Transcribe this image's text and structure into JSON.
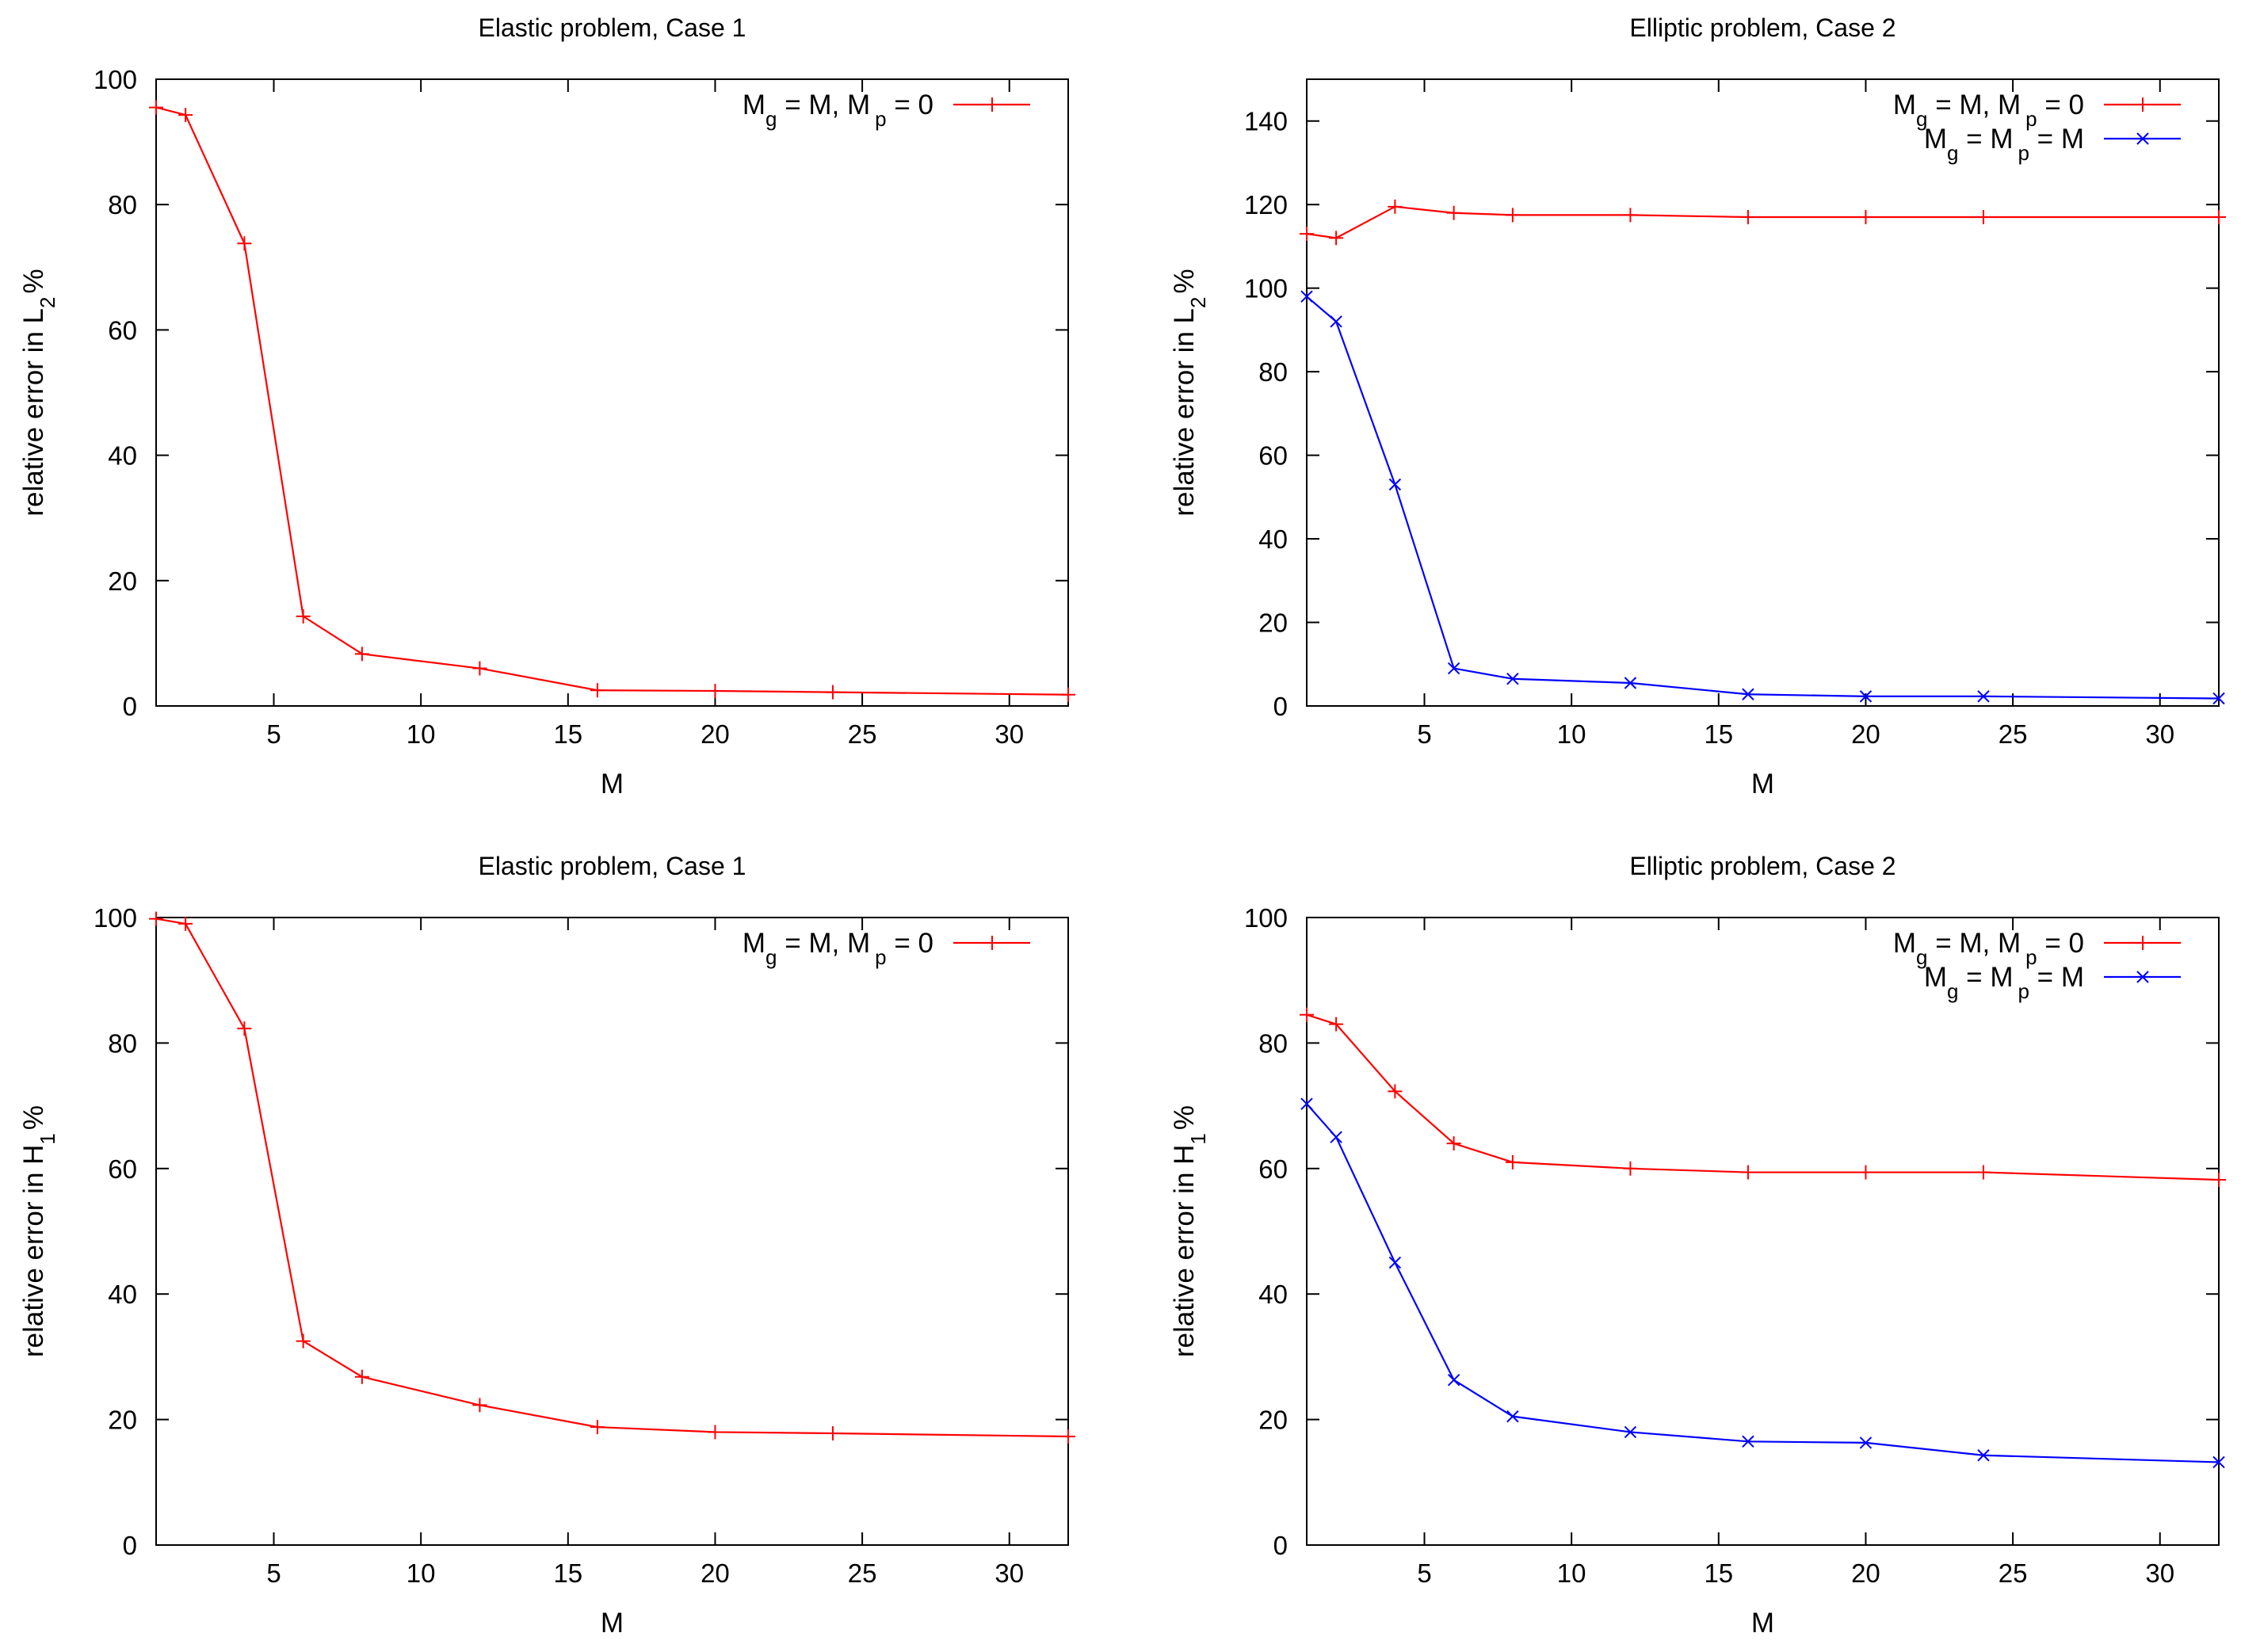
{
  "colors": {
    "red": "#ff0000",
    "blue": "#0000ff",
    "frame": "#000000"
  },
  "chart_data": [
    {
      "type": "line",
      "title": "Elastic problem, Case 1",
      "xlabel": "M",
      "ylabel": {
        "text": "relative error in L",
        "sub": "2",
        "suffix": "%"
      },
      "xlim": [
        1,
        32
      ],
      "ylim": [
        0,
        100
      ],
      "xticks": [
        5,
        10,
        15,
        20,
        25,
        30
      ],
      "yticks": [
        0,
        20,
        40,
        60,
        80,
        100
      ],
      "series": [
        {
          "name": "M_g = M, M_p = 0",
          "label": {
            "a": "M",
            "a_sub": "g",
            "b": " = M, M",
            "b_sub": "p",
            "c": " = 0"
          },
          "color": "red",
          "marker": "plus",
          "x": [
            1,
            2,
            4,
            6,
            8,
            12,
            16,
            20,
            24,
            32
          ],
          "y": [
            95.5,
            94.3,
            73.8,
            14.3,
            8.3,
            6.0,
            2.5,
            2.4,
            2.2,
            1.8
          ]
        }
      ]
    },
    {
      "type": "line",
      "title": "Elliptic problem, Case 2",
      "xlabel": "M",
      "ylabel": {
        "text": "relative error in L",
        "sub": "2",
        "suffix": "%"
      },
      "xlim": [
        1,
        32
      ],
      "ylim": [
        0,
        150
      ],
      "xticks": [
        5,
        10,
        15,
        20,
        25,
        30
      ],
      "yticks": [
        0,
        20,
        40,
        60,
        80,
        100,
        120,
        140
      ],
      "series": [
        {
          "name": "M_g = M, M_p = 0",
          "label": {
            "a": "M",
            "a_sub": "g",
            "b": " = M, M",
            "b_sub": "p",
            "c": " = 0"
          },
          "color": "red",
          "marker": "plus",
          "x": [
            1,
            2,
            4,
            6,
            8,
            12,
            16,
            20,
            24,
            32
          ],
          "y": [
            113,
            112,
            119.5,
            118,
            117.5,
            117.5,
            117,
            117,
            117,
            117
          ]
        },
        {
          "name": "M_g = M_p = M",
          "label": {
            "a": "M",
            "a_sub": "g",
            "b": " = M",
            "b_sub": "p",
            "c": " = M"
          },
          "color": "blue",
          "marker": "cross",
          "x": [
            1,
            2,
            4,
            6,
            8,
            12,
            16,
            20,
            24,
            32
          ],
          "y": [
            98,
            92,
            53,
            9,
            6.5,
            5.5,
            2.8,
            2.3,
            2.3,
            1.8
          ]
        }
      ]
    },
    {
      "type": "line",
      "title": "Elastic problem, Case 1",
      "xlabel": "M",
      "ylabel": {
        "text": "relative error in H",
        "sub": "1",
        "suffix": "%"
      },
      "xlim": [
        1,
        32
      ],
      "ylim": [
        0,
        100
      ],
      "xticks": [
        5,
        10,
        15,
        20,
        25,
        30
      ],
      "yticks": [
        0,
        20,
        40,
        60,
        80,
        100
      ],
      "series": [
        {
          "name": "M_g = M, M_p = 0",
          "label": {
            "a": "M",
            "a_sub": "g",
            "b": " = M, M",
            "b_sub": "p",
            "c": " = 0"
          },
          "color": "red",
          "marker": "plus",
          "x": [
            1,
            2,
            4,
            6,
            8,
            12,
            16,
            20,
            24,
            32
          ],
          "y": [
            99.8,
            99,
            82.3,
            32.5,
            26.8,
            22.3,
            18.8,
            18,
            17.8,
            17.3
          ]
        }
      ]
    },
    {
      "type": "line",
      "title": "Elliptic problem, Case 2",
      "xlabel": "M",
      "ylabel": {
        "text": "relative error in H",
        "sub": "1",
        "suffix": "%"
      },
      "xlim": [
        1,
        32
      ],
      "ylim": [
        0,
        100
      ],
      "xticks": [
        5,
        10,
        15,
        20,
        25,
        30
      ],
      "yticks": [
        0,
        20,
        40,
        60,
        80,
        100
      ],
      "series": [
        {
          "name": "M_g = M, M_p = 0",
          "label": {
            "a": "M",
            "a_sub": "g",
            "b": " = M, M",
            "b_sub": "p",
            "c": " = 0"
          },
          "color": "red",
          "marker": "plus",
          "x": [
            1,
            2,
            4,
            6,
            8,
            12,
            16,
            20,
            24,
            32
          ],
          "y": [
            84.5,
            83,
            72.3,
            64,
            61,
            60,
            59.4,
            59.4,
            59.4,
            58.2
          ]
        },
        {
          "name": "M_g = M_p = M",
          "label": {
            "a": "M",
            "a_sub": "g",
            "b": " = M",
            "b_sub": "p",
            "c": " = M"
          },
          "color": "blue",
          "marker": "cross",
          "x": [
            1,
            2,
            4,
            6,
            8,
            12,
            16,
            20,
            24,
            32
          ],
          "y": [
            70.3,
            65,
            45,
            26.3,
            20.5,
            18,
            16.5,
            16.3,
            14.3,
            13.2
          ]
        }
      ]
    }
  ]
}
